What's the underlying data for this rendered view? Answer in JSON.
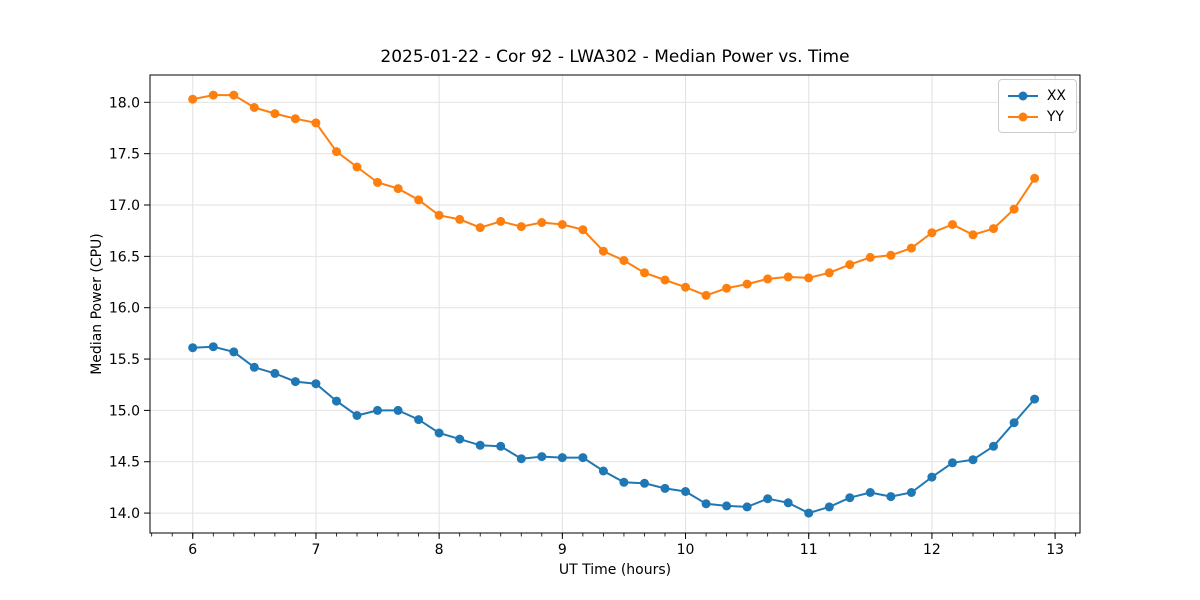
{
  "figure": {
    "background": "#ffffff"
  },
  "chart_data": {
    "type": "line",
    "title": "2025-01-22 - Cor 92 - LWA302 - Median Power vs. Time",
    "xlabel": "UT Time (hours)",
    "ylabel": "Median Power (CPU)",
    "xlim": [
      5.653,
      13.202
    ],
    "ylim": [
      13.806,
      18.266
    ],
    "xticks": [
      6,
      7,
      8,
      9,
      10,
      11,
      12,
      13
    ],
    "xtick_labels": [
      "6",
      "7",
      "8",
      "9",
      "10",
      "11",
      "12",
      "13"
    ],
    "yticks": [
      14.0,
      14.5,
      15.0,
      15.5,
      16.0,
      16.5,
      17.0,
      17.5,
      18.0
    ],
    "ytick_labels": [
      "14.0",
      "14.5",
      "15.0",
      "15.5",
      "16.0",
      "16.5",
      "17.0",
      "17.5",
      "18.0"
    ],
    "minor_xtick_step": 0.166667,
    "grid": true,
    "grid_color": "#e2e2e2",
    "legend_position": "upper right",
    "x": [
      6.0,
      6.1667,
      6.3333,
      6.5,
      6.6667,
      6.8333,
      7.0,
      7.1667,
      7.3333,
      7.5,
      7.6667,
      7.8333,
      8.0,
      8.1667,
      8.3333,
      8.5,
      8.6667,
      8.8333,
      9.0,
      9.1667,
      9.3333,
      9.5,
      9.6667,
      9.8333,
      10.0,
      10.1667,
      10.3333,
      10.5,
      10.6667,
      10.8333,
      11.0,
      11.1667,
      11.3333,
      11.5,
      11.6667,
      11.8333,
      12.0,
      12.1667,
      12.3333,
      12.5,
      12.6667,
      12.8333
    ],
    "series": [
      {
        "name": "XX",
        "color": "#1f77b4",
        "values": [
          15.61,
          15.62,
          15.57,
          15.42,
          15.36,
          15.28,
          15.26,
          15.09,
          14.95,
          15.0,
          15.0,
          14.91,
          14.78,
          14.72,
          14.66,
          14.65,
          14.53,
          14.55,
          14.54,
          14.54,
          14.41,
          14.3,
          14.29,
          14.24,
          14.21,
          14.09,
          14.07,
          14.06,
          14.14,
          14.1,
          14.0,
          14.06,
          14.15,
          14.2,
          14.16,
          14.2,
          14.35,
          14.49,
          14.52,
          14.65,
          14.88,
          15.11
        ]
      },
      {
        "name": "YY",
        "color": "#ff7f0e",
        "values": [
          18.03,
          18.07,
          18.07,
          17.95,
          17.89,
          17.84,
          17.8,
          17.52,
          17.37,
          17.22,
          17.16,
          17.05,
          16.9,
          16.86,
          16.78,
          16.84,
          16.79,
          16.83,
          16.81,
          16.76,
          16.55,
          16.46,
          16.34,
          16.27,
          16.2,
          16.12,
          16.19,
          16.23,
          16.28,
          16.3,
          16.29,
          16.34,
          16.42,
          16.49,
          16.51,
          16.58,
          16.73,
          16.81,
          16.71,
          16.77,
          16.96,
          17.26
        ]
      }
    ]
  }
}
